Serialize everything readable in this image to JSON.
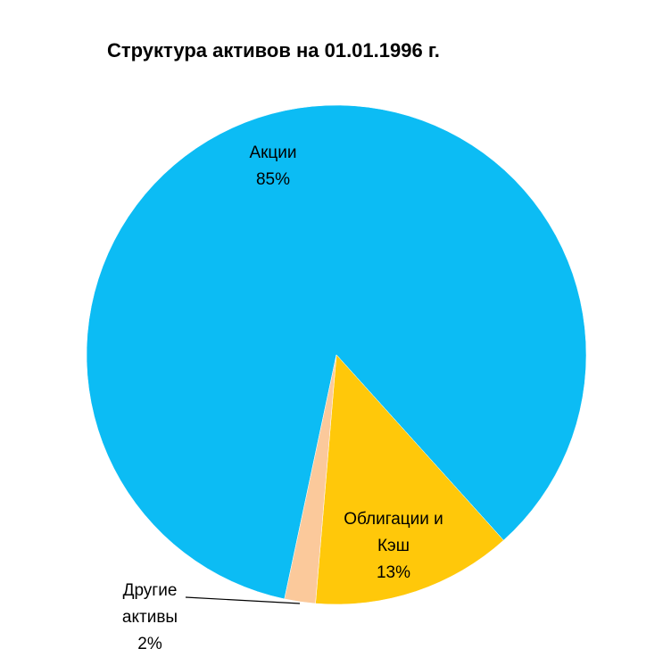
{
  "chart_data": {
    "type": "pie",
    "title": "Структура активов  на 01.01.1996 г.",
    "categories": [
      "Акции",
      "Облигации и Кэш",
      "Другие активы"
    ],
    "values": [
      85,
      13,
      2
    ],
    "value_labels": [
      "85%",
      "13%",
      "2%"
    ],
    "colors": [
      "#0cbcf4",
      "#ffc80a",
      "#fbc99b"
    ]
  }
}
